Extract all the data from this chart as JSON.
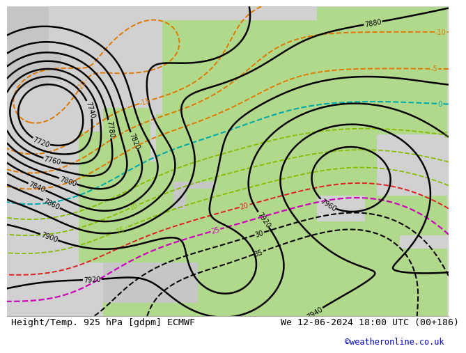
{
  "title_left": "Height/Temp. 925 hPa [gdpm] ECMWF",
  "title_right": "We 12-06-2024 18:00 UTC (00+186)",
  "credit": "©weatheronline.co.uk",
  "title_fontsize": 9.5,
  "credit_fontsize": 8.5,
  "credit_color": "#0000cc",
  "land_green": [
    0.698,
    0.851,
    0.549
  ],
  "land_gray": [
    0.78,
    0.78,
    0.78
  ],
  "ocean_gray": [
    0.82,
    0.82,
    0.82
  ],
  "height_color": "#000000",
  "temp_orange": "#e07800",
  "temp_lgreen": "#88bb00",
  "temp_cyan": "#00aaaa",
  "temp_red": "#dd2020",
  "temp_magenta": "#cc00bb",
  "temp_black_warm": "#000000",
  "lon_min": -22,
  "lon_max": 52,
  "lat_min": 28,
  "lat_max": 74
}
